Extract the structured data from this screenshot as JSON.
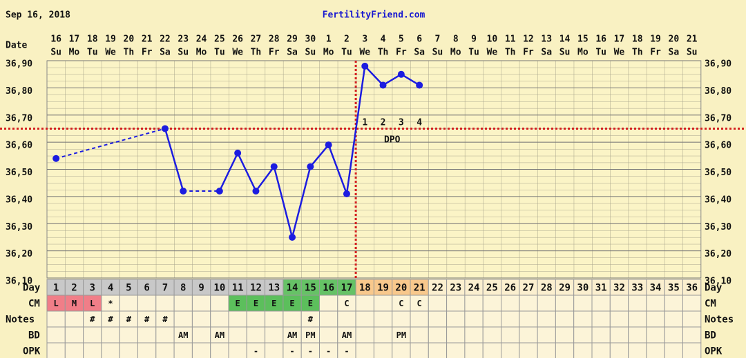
{
  "header": {
    "date": "Sep 16, 2018",
    "site": "FertilityFriend.com"
  },
  "chart_data": {
    "type": "line",
    "x_label": "Date",
    "dates": [
      "16",
      "17",
      "18",
      "19",
      "20",
      "21",
      "22",
      "23",
      "24",
      "25",
      "26",
      "27",
      "28",
      "29",
      "30",
      "1",
      "2",
      "3",
      "4",
      "5",
      "6",
      "7",
      "8",
      "9",
      "10",
      "11",
      "12",
      "13",
      "14",
      "15",
      "16",
      "17",
      "18",
      "19",
      "20",
      "21"
    ],
    "weekdays": [
      "Su",
      "Mo",
      "Tu",
      "We",
      "Th",
      "Fr",
      "Sa",
      "Su",
      "Mo",
      "Tu",
      "We",
      "Th",
      "Fr",
      "Sa",
      "Su",
      "Mo",
      "Tu",
      "We",
      "Th",
      "Fr",
      "Sa",
      "Su",
      "Mo",
      "Tu",
      "We",
      "Th",
      "Fr",
      "Sa",
      "Su",
      "Mo",
      "Tu",
      "We",
      "Th",
      "Fr",
      "Sa",
      "Su"
    ],
    "series": [
      {
        "color": "#1c1ce0",
        "values": [
          36.54,
          null,
          null,
          null,
          null,
          null,
          36.65,
          36.42,
          null,
          36.42,
          36.56,
          36.42,
          36.51,
          36.25,
          36.51,
          36.59,
          36.41,
          36.88,
          36.81,
          36.85,
          36.81,
          null,
          null,
          null,
          null,
          null,
          null,
          null,
          null,
          null,
          null,
          null,
          null,
          null,
          null,
          null
        ]
      }
    ],
    "ylim": [
      36.1,
      36.9
    ],
    "yticks": [
      {
        "value": 36.1,
        "label": "36,10"
      },
      {
        "value": 36.2,
        "label": "36,20"
      },
      {
        "value": 36.3,
        "label": "36,30"
      },
      {
        "value": 36.4,
        "label": "36,40"
      },
      {
        "value": 36.5,
        "label": "36,50"
      },
      {
        "value": 36.6,
        "label": "36,60"
      },
      {
        "value": 36.7,
        "label": "36,70"
      },
      {
        "value": 36.8,
        "label": "36,80"
      },
      {
        "value": 36.9,
        "label": "36,90"
      }
    ],
    "coverline": 36.65,
    "ovulation_day": 17,
    "marker_line_color": "#d42020",
    "dpo_labels": [
      "1",
      "2",
      "3",
      "4"
    ],
    "dpo_title": "DPO"
  },
  "table": {
    "row_labels": [
      "Day",
      "CM",
      "Notes",
      "BD",
      "OPK"
    ],
    "days": [
      1,
      2,
      3,
      4,
      5,
      6,
      7,
      8,
      9,
      10,
      11,
      12,
      13,
      14,
      15,
      16,
      17,
      18,
      19,
      20,
      21,
      22,
      23,
      24,
      25,
      26,
      27,
      28,
      29,
      30,
      31,
      32,
      33,
      34,
      35,
      36
    ],
    "day_colors": [
      "#c8c8c8",
      "#c8c8c8",
      "#c8c8c8",
      "#c8c8c8",
      "#c8c8c8",
      "#c8c8c8",
      "#c8c8c8",
      "#c8c8c8",
      "#c8c8c8",
      "#c8c8c8",
      "#c8c8c8",
      "#c8c8c8",
      "#c8c8c8",
      "#66c266",
      "#66c266",
      "#66c266",
      "#66c266",
      "#f8c88c",
      "#f8c88c",
      "#f8c88c",
      "#f8c88c",
      "#fbefcf",
      "#fbefcf",
      "#fbefcf",
      "#fbefcf",
      "#fbefcf",
      "#fbefcf",
      "#fbefcf",
      "#fbefcf",
      "#fbefcf",
      "#fbefcf",
      "#fbefcf",
      "#fbefcf",
      "#fbefcf",
      "#fbefcf",
      "#fbefcf"
    ],
    "cm": [
      "L",
      "M",
      "L",
      "*",
      null,
      null,
      null,
      null,
      null,
      null,
      "E",
      "E",
      "E",
      "E",
      "E",
      null,
      "C",
      null,
      null,
      "C",
      "C",
      null,
      null,
      null,
      null,
      null,
      null,
      null,
      null,
      null,
      null,
      null,
      null,
      null,
      null,
      null
    ],
    "cm_colors": {
      "L": "#f07e88",
      "M": "#f07e88",
      "E": "#5cbf5c"
    },
    "notes": [
      null,
      null,
      "#",
      "#",
      "#",
      "#",
      "#",
      null,
      null,
      null,
      null,
      null,
      null,
      null,
      "#",
      null,
      null,
      null,
      null,
      null,
      null,
      null,
      null,
      null,
      null,
      null,
      null,
      null,
      null,
      null,
      null,
      null,
      null,
      null,
      null,
      null
    ],
    "bd": [
      null,
      null,
      null,
      null,
      null,
      null,
      null,
      "AM",
      null,
      "AM",
      null,
      null,
      null,
      "AM",
      "PM",
      null,
      "AM",
      null,
      null,
      "PM",
      null,
      null,
      null,
      null,
      null,
      null,
      null,
      null,
      null,
      null,
      null,
      null,
      null,
      null,
      null,
      null
    ],
    "opk": [
      null,
      null,
      null,
      null,
      null,
      null,
      null,
      null,
      null,
      null,
      null,
      "-",
      null,
      "-",
      "-",
      "-",
      "-",
      null,
      null,
      null,
      null,
      null,
      null,
      null,
      null,
      null,
      null,
      null,
      null,
      null,
      null,
      null,
      null,
      null,
      null,
      null
    ]
  }
}
